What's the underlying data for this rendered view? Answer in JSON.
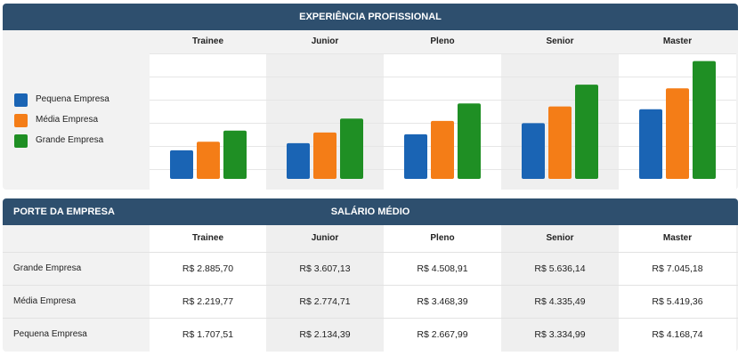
{
  "top_panel": {
    "title": "EXPERIÊNCIA PROFISSIONAL"
  },
  "levels": [
    "Trainee",
    "Junior",
    "Pleno",
    "Senior",
    "Master"
  ],
  "legend": [
    {
      "label": "Pequena Empresa",
      "color": "#1a64b4"
    },
    {
      "label": "Média Empresa",
      "color": "#f47d17"
    },
    {
      "label": "Grande Empresa",
      "color": "#1f8f24"
    }
  ],
  "chart_data": {
    "type": "bar",
    "categories": [
      "Trainee",
      "Junior",
      "Pleno",
      "Senior",
      "Master"
    ],
    "series": [
      {
        "name": "Pequena Empresa",
        "values": [
          1707.51,
          2134.39,
          2667.99,
          3334.99,
          4168.74
        ]
      },
      {
        "name": "Média Empresa",
        "values": [
          2219.77,
          2774.71,
          3468.39,
          4335.49,
          5419.36
        ]
      },
      {
        "name": "Grande Empresa",
        "values": [
          2885.7,
          3607.13,
          4508.91,
          5636.14,
          7045.18
        ]
      }
    ],
    "ylim": [
      0,
      7400
    ],
    "grid": true,
    "legend_position": "left"
  },
  "bottom_panel": {
    "left_title": "PORTE DA EMPRESA",
    "center_title": "SALÁRIO MÉDIO",
    "rows": [
      {
        "label": "Grande Empresa",
        "values": [
          "R$ 2.885,70",
          "R$ 3.607,13",
          "R$ 4.508,91",
          "R$ 5.636,14",
          "R$ 7.045,18"
        ]
      },
      {
        "label": "Média Empresa",
        "values": [
          "R$ 2.219,77",
          "R$ 2.774,71",
          "R$ 3.468,39",
          "R$ 4.335,49",
          "R$ 5.419,36"
        ]
      },
      {
        "label": "Pequena Empresa",
        "values": [
          "R$ 1.707,51",
          "R$ 2.134,39",
          "R$ 2.667,99",
          "R$ 3.334,99",
          "R$ 4.168,74"
        ]
      }
    ]
  }
}
